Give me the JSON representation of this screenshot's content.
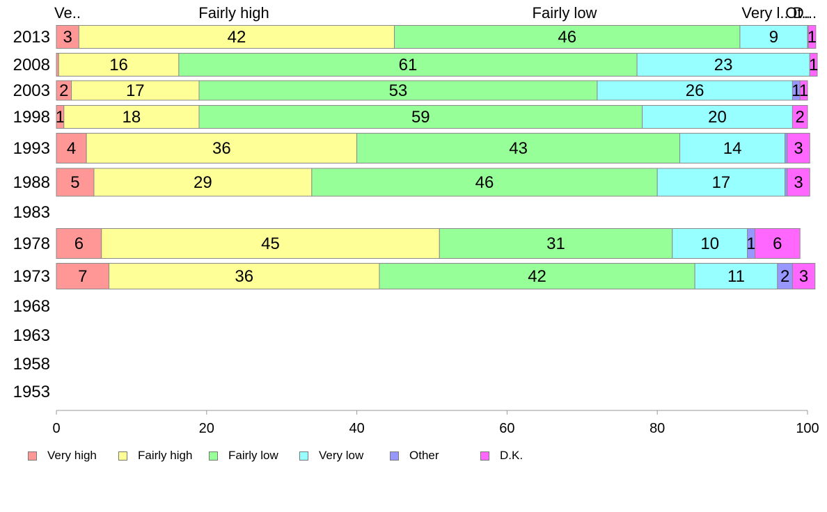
{
  "chart_data": {
    "type": "bar",
    "orientation": "horizontal",
    "stacked": true,
    "title": "",
    "xlabel": "",
    "ylabel": "",
    "xlim": [
      0,
      100
    ],
    "x_ticks": [
      0,
      20,
      40,
      60,
      80,
      100
    ],
    "grid": false,
    "legend_position": "bottom",
    "categories": [
      "2013",
      "2008",
      "2003",
      "1998",
      "1993",
      "1988",
      "1983",
      "1978",
      "1973",
      "1968",
      "1963",
      "1958",
      "1953"
    ],
    "top_labels": [
      "Ve..",
      "Fairly high",
      "Fairly low",
      "Very l..",
      "Ot..",
      "D..."
    ],
    "series": [
      {
        "name": "Very high",
        "color": "#ff9797",
        "values": [
          3,
          0.3,
          2,
          1,
          4,
          5,
          null,
          6,
          7,
          null,
          null,
          null,
          null
        ]
      },
      {
        "name": "Fairly high",
        "color": "#ffff97",
        "values": [
          42,
          16,
          17,
          18,
          36,
          29,
          null,
          45,
          36,
          null,
          null,
          null,
          null
        ]
      },
      {
        "name": "Fairly low",
        "color": "#97ff97",
        "values": [
          46,
          61,
          53,
          59,
          43,
          46,
          null,
          31,
          42,
          null,
          null,
          null,
          null
        ]
      },
      {
        "name": "Very low",
        "color": "#97ffff",
        "values": [
          9,
          23,
          26,
          20,
          14,
          17,
          null,
          10,
          11,
          null,
          null,
          null,
          null
        ]
      },
      {
        "name": "Other",
        "color": "#9797ff",
        "values": [
          0.1,
          0,
          1,
          0,
          0.3,
          0.3,
          null,
          1,
          2,
          null,
          null,
          null,
          null
        ]
      },
      {
        "name": "D.K.",
        "color": "#ff67ff",
        "values": [
          1,
          1,
          1,
          2,
          3,
          3,
          null,
          6,
          3,
          null,
          null,
          null,
          null
        ]
      }
    ]
  },
  "legend": {
    "items": [
      {
        "label": "Very high",
        "color": "#ff9797"
      },
      {
        "label": "Fairly high",
        "color": "#ffff97"
      },
      {
        "label": "Fairly low",
        "color": "#97ff97"
      },
      {
        "label": "Very low",
        "color": "#97ffff"
      },
      {
        "label": "Other",
        "color": "#9797ff"
      },
      {
        "label": "D.K.",
        "color": "#ff67ff"
      }
    ]
  }
}
